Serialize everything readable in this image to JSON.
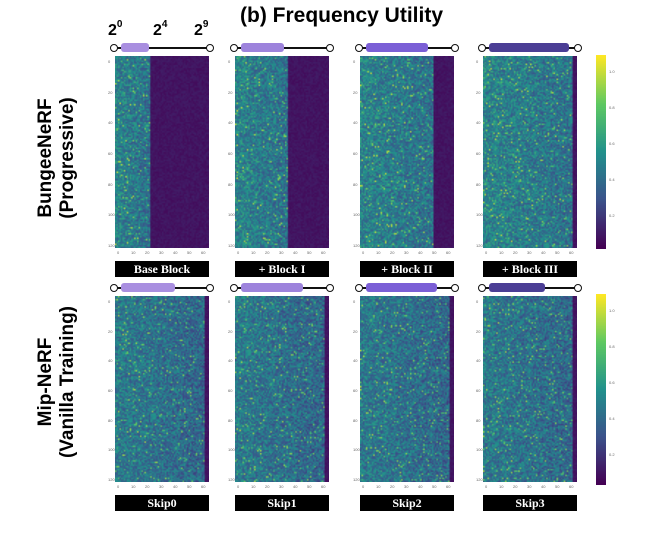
{
  "title": "(b) Frequency Utility",
  "powers": [
    {
      "base": "2",
      "exp": "0"
    },
    {
      "base": "2",
      "exp": "4"
    },
    {
      "base": "2",
      "exp": "9"
    }
  ],
  "rows": [
    {
      "label_line1": "BungeeNeRF",
      "label_line2": "(Progressive)"
    },
    {
      "label_line1": "Mip-NeRF",
      "label_line2": "(Vanilla Training)"
    }
  ],
  "colors": {
    "bar_fills": [
      "#a98fe0",
      "#9d83dc",
      "#7b5fd6",
      "#4b3e95"
    ],
    "line": "#111111",
    "colormap": "viridis"
  },
  "chart_data": [
    {
      "type": "heatmap",
      "group": "BungeeNeRF (Progressive)",
      "panels": [
        {
          "label": "Base Block",
          "active_fraction": 0.34,
          "frequency_range": [
            0,
            0.37
          ]
        },
        {
          "label": "+ Block  I",
          "active_fraction": 0.52,
          "frequency_range": [
            0,
            0.56
          ]
        },
        {
          "label": "+ Block II",
          "active_fraction": 0.75,
          "frequency_range": [
            0,
            0.78
          ]
        },
        {
          "label": "+ Block III",
          "active_fraction": 0.98,
          "frequency_range": [
            0,
            0.95
          ]
        }
      ],
      "x_ticks": [
        "0",
        "10",
        "20",
        "30",
        "40",
        "50",
        "60"
      ],
      "y_ticks": [
        "0",
        "20",
        "40",
        "60",
        "80",
        "100",
        "120"
      ],
      "colorbar_ticks": [
        "1.0",
        "0.8",
        "0.6",
        "0.4",
        "0.2"
      ],
      "value_range": [
        0,
        1.0
      ]
    },
    {
      "type": "heatmap",
      "group": "Mip-NeRF (Vanilla Training)",
      "panels": [
        {
          "label": "Skip0",
          "active_fraction": 0.66,
          "frequency_range": [
            0,
            0.95
          ]
        },
        {
          "label": "Skip1",
          "active_fraction": 0.76,
          "frequency_range": [
            0,
            0.95
          ]
        },
        {
          "label": "Skip2",
          "active_fraction": 0.86,
          "frequency_range": [
            0,
            0.95
          ]
        },
        {
          "label": "Skip3",
          "active_fraction": 0.68,
          "frequency_range": [
            0,
            0.95
          ]
        }
      ],
      "x_ticks": [
        "0",
        "10",
        "20",
        "30",
        "40",
        "50",
        "60"
      ],
      "y_ticks": [
        "0",
        "20",
        "40",
        "60",
        "80",
        "100",
        "120"
      ],
      "colorbar_ticks": [
        "1.0",
        "0.8",
        "0.6",
        "0.4",
        "0.2"
      ],
      "value_range": [
        0,
        1.0
      ]
    }
  ]
}
